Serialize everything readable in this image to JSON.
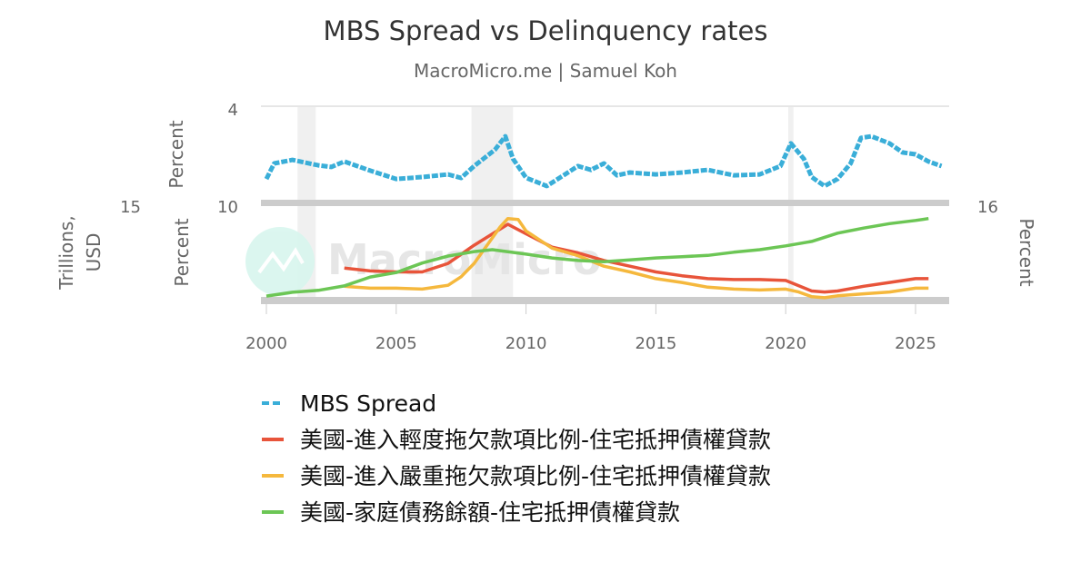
{
  "chart_data": {
    "type": "line",
    "title": "MBS Spread vs Delinquency rates",
    "subtitle": "MacroMicro.me | Samuel Koh",
    "watermark": "MacroMicro",
    "grid": false,
    "legend_position": "bottom",
    "x_ticks": [
      "2000",
      "2005",
      "2010",
      "2015",
      "2020",
      "2025"
    ],
    "xlim": [
      2000,
      2026.3
    ],
    "recessions": [
      [
        2001.2,
        2001.9
      ],
      [
        2007.9,
        2009.5
      ],
      [
        2020.1,
        2020.3
      ]
    ],
    "axes": {
      "top_left": {
        "label": "Percent",
        "top_tick": "4",
        "ylim": [
          0,
          4
        ]
      },
      "bottom_left": {
        "label": "Percent",
        "top_tick": "10",
        "ylim": [
          0,
          10
        ]
      },
      "bottom_far_left": {
        "label": "Trillions, USD",
        "top_tick": "15",
        "ylim": [
          0,
          15
        ]
      },
      "bottom_right": {
        "label": "Percent",
        "top_tick": "16",
        "ylim": [
          0,
          16
        ]
      }
    },
    "series": [
      {
        "name": "MBS Spread",
        "color": "#3aaed8",
        "dashed": true,
        "pane": "top",
        "axis": "top_left",
        "x": [
          2000.0,
          2000.3,
          2001,
          2002,
          2002.5,
          2003,
          2004,
          2005,
          2006,
          2007,
          2007.5,
          2008,
          2008.8,
          2009.2,
          2009.5,
          2010,
          2010.8,
          2011.5,
          2012,
          2012.5,
          2013,
          2013.5,
          2014,
          2015,
          2016,
          2017,
          2018,
          2019,
          2019.8,
          2020.2,
          2020.7,
          2021,
          2021.5,
          2022,
          2022.5,
          2022.9,
          2023.3,
          2024,
          2024.5,
          2025,
          2025.5,
          2026
        ],
        "y": [
          0.95,
          1.6,
          1.75,
          1.52,
          1.45,
          1.68,
          1.3,
          0.95,
          1.03,
          1.14,
          0.99,
          1.49,
          2.17,
          2.74,
          1.79,
          1.0,
          0.65,
          1.14,
          1.49,
          1.33,
          1.6,
          1.1,
          1.22,
          1.14,
          1.22,
          1.33,
          1.1,
          1.14,
          1.49,
          2.44,
          1.79,
          1.03,
          0.65,
          0.95,
          1.6,
          2.67,
          2.74,
          2.44,
          2.06,
          1.98,
          1.68,
          1.49
        ]
      },
      {
        "name": "美國-進入輕度拖欠款項比例-住宅抵押債權貸款",
        "color": "#e8543a",
        "pane": "bottom",
        "axis": "bottom_left",
        "x": [
          2003,
          2004,
          2005,
          2006,
          2007,
          2008,
          2009.3,
          2010,
          2011,
          2012,
          2013,
          2014,
          2015,
          2016,
          2017,
          2018,
          2019,
          2020,
          2021,
          2021.5,
          2022,
          2023,
          2024,
          2025,
          2025.5
        ],
        "y": [
          3.4,
          3.1,
          3.0,
          3.0,
          3.9,
          5.8,
          8.0,
          7.0,
          5.6,
          5.0,
          4.2,
          3.6,
          3.0,
          2.6,
          2.3,
          2.2,
          2.2,
          2.1,
          1.0,
          0.9,
          1.0,
          1.5,
          1.9,
          2.3,
          2.3
        ]
      },
      {
        "name": "美國-進入嚴重拖欠款項比例-住宅抵押債權貸款",
        "color": "#f5b83d",
        "pane": "bottom",
        "axis": "bottom_left",
        "x": [
          2003,
          2004,
          2005,
          2006,
          2007,
          2007.5,
          2008,
          2009,
          2009.3,
          2009.7,
          2010,
          2011,
          2012,
          2013,
          2014,
          2015,
          2016,
          2017,
          2018,
          2019,
          2020,
          2020.5,
          2021,
          2021.5,
          2022,
          2023,
          2024,
          2025,
          2025.5
        ],
        "y": [
          1.5,
          1.3,
          1.3,
          1.2,
          1.6,
          2.5,
          3.9,
          7.7,
          8.6,
          8.5,
          7.3,
          5.5,
          4.7,
          3.6,
          3.0,
          2.3,
          1.9,
          1.4,
          1.2,
          1.1,
          1.2,
          0.9,
          0.4,
          0.3,
          0.5,
          0.7,
          0.9,
          1.3,
          1.3
        ]
      },
      {
        "name": "美國-家庭債務餘額-住宅抵押債權貸款",
        "color": "#6cc655",
        "pane": "bottom",
        "axis": "bottom_far_left",
        "x": [
          2000,
          2001,
          2002,
          2003,
          2004,
          2005,
          2006,
          2007,
          2008,
          2008.7,
          2010,
          2011,
          2012,
          2013,
          2014,
          2015,
          2016,
          2017,
          2018,
          2019,
          2020,
          2021,
          2022,
          2023,
          2024,
          2025,
          2025.5
        ],
        "y": [
          0.7,
          1.3,
          1.6,
          2.3,
          3.7,
          4.4,
          5.9,
          7.0,
          7.7,
          8.0,
          7.3,
          6.7,
          6.3,
          6.1,
          6.4,
          6.7,
          6.9,
          7.1,
          7.6,
          8.0,
          8.6,
          9.3,
          10.6,
          11.4,
          12.1,
          12.6,
          12.9
        ]
      }
    ]
  }
}
